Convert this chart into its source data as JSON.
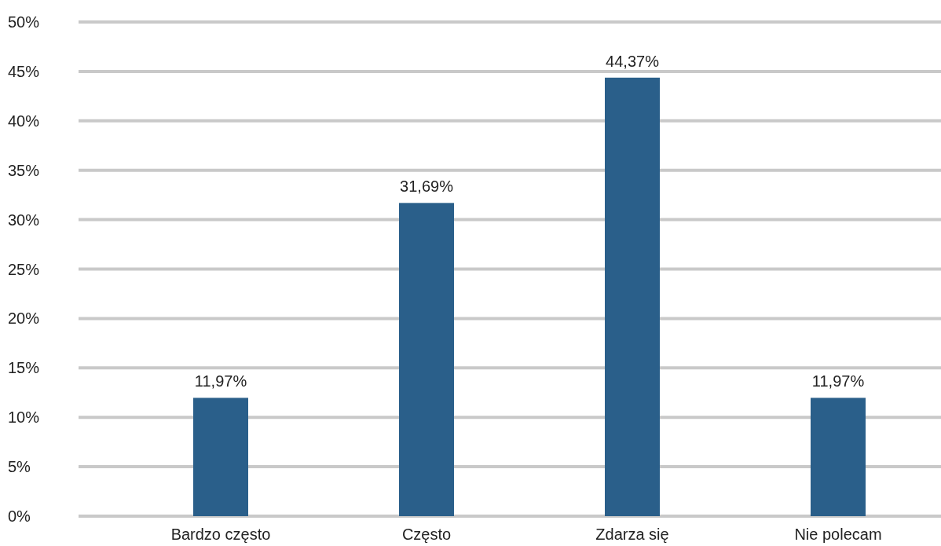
{
  "chart_data": {
    "type": "bar",
    "categories": [
      "Bardzo często",
      "Często",
      "Zdarza się",
      "Nie polecam"
    ],
    "values": [
      11.97,
      31.69,
      44.37,
      11.97
    ],
    "value_labels": [
      "11,97%",
      "31,69%",
      "44,37%",
      "11,97%"
    ],
    "color": "#2a5f8a",
    "ylim": [
      0,
      50
    ],
    "yticks": [
      {
        "value": 0,
        "label": "0%"
      },
      {
        "value": 5,
        "label": "5%"
      },
      {
        "value": 10,
        "label": "10%"
      },
      {
        "value": 15,
        "label": "15%"
      },
      {
        "value": 20,
        "label": "20%"
      },
      {
        "value": 25,
        "label": "25%"
      },
      {
        "value": 30,
        "label": "30%"
      },
      {
        "value": 35,
        "label": "35%"
      },
      {
        "value": 40,
        "label": "40%"
      },
      {
        "value": 45,
        "label": "45%"
      },
      {
        "value": 50,
        "label": "50%"
      }
    ],
    "grid": "y"
  }
}
